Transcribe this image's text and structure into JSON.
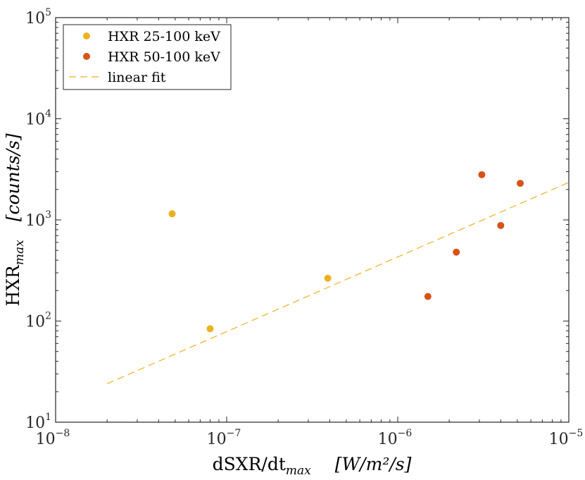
{
  "chart_data": {
    "type": "scatter",
    "xscale": "log",
    "yscale": "log",
    "xlim": [
      1e-08,
      1e-05
    ],
    "ylim": [
      10,
      100000
    ],
    "x_ticks": [
      {
        "base": "10",
        "exp": "−8"
      },
      {
        "base": "10",
        "exp": "−7"
      },
      {
        "base": "10",
        "exp": "−6"
      },
      {
        "base": "10",
        "exp": "−5"
      }
    ],
    "y_ticks": [
      {
        "base": "10",
        "exp": "1"
      },
      {
        "base": "10",
        "exp": "2"
      },
      {
        "base": "10",
        "exp": "3"
      },
      {
        "base": "10",
        "exp": "4"
      },
      {
        "base": "10",
        "exp": "5"
      }
    ],
    "xlabel": {
      "main": "dSXR/dt",
      "sub": "max",
      "unit": "[W/m²/s]"
    },
    "ylabel": {
      "main": "HXR",
      "sub": "max",
      "unit": "[counts/s]"
    },
    "grid": false,
    "legend_position": "top-left",
    "series": [
      {
        "name": "HXR 25-100 keV",
        "color": "#EDB120",
        "marker": "circle",
        "points": [
          {
            "x": 4.8e-08,
            "y": 1150
          },
          {
            "x": 8e-08,
            "y": 84
          },
          {
            "x": 3.9e-07,
            "y": 265
          }
        ]
      },
      {
        "name": "HXR 50-100 keV",
        "color": "#D95319",
        "marker": "circle",
        "points": [
          {
            "x": 1.5e-06,
            "y": 175
          },
          {
            "x": 2.2e-06,
            "y": 480
          },
          {
            "x": 3.1e-06,
            "y": 2800
          },
          {
            "x": 4e-06,
            "y": 880
          },
          {
            "x": 5.2e-06,
            "y": 2300
          }
        ]
      },
      {
        "name": "linear fit",
        "color": "#EDB120",
        "style": "dashed",
        "points": [
          {
            "x": 2e-08,
            "y": 24
          },
          {
            "x": 1e-05,
            "y": 2350
          }
        ]
      }
    ]
  }
}
